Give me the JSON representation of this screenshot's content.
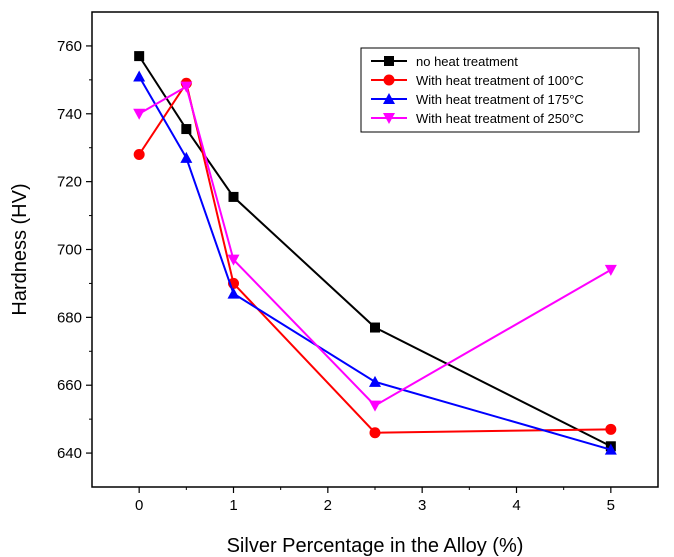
{
  "chart_data": {
    "type": "line",
    "xlabel": "Silver Percentage in the Alloy (%)",
    "ylabel": "Hardness (HV)",
    "xlim": [
      -0.5,
      5.5
    ],
    "ylim": [
      630,
      770
    ],
    "xticks": [
      0,
      1,
      2,
      3,
      4,
      5
    ],
    "yticks": [
      640,
      660,
      680,
      700,
      720,
      740,
      760
    ],
    "x": [
      0,
      0.5,
      1,
      2.5,
      5
    ],
    "grid": false,
    "legend_position": "top-right",
    "series": [
      {
        "name": "no heat treatment",
        "color": "#000000",
        "marker": "square",
        "values": [
          757,
          735.5,
          715.5,
          677,
          642
        ]
      },
      {
        "name": "With heat treatment of 100°C",
        "color": "#ff0000",
        "marker": "circle",
        "values": [
          728,
          749,
          690,
          646,
          647
        ]
      },
      {
        "name": "With heat treatment of 175°C",
        "color": "#0000ff",
        "marker": "triangle-up",
        "values": [
          751,
          727,
          687,
          661,
          641
        ]
      },
      {
        "name": "With heat treatment of 250°C",
        "color": "#ff00ff",
        "marker": "triangle-down",
        "values": [
          740,
          748,
          697,
          654,
          694
        ]
      }
    ]
  }
}
